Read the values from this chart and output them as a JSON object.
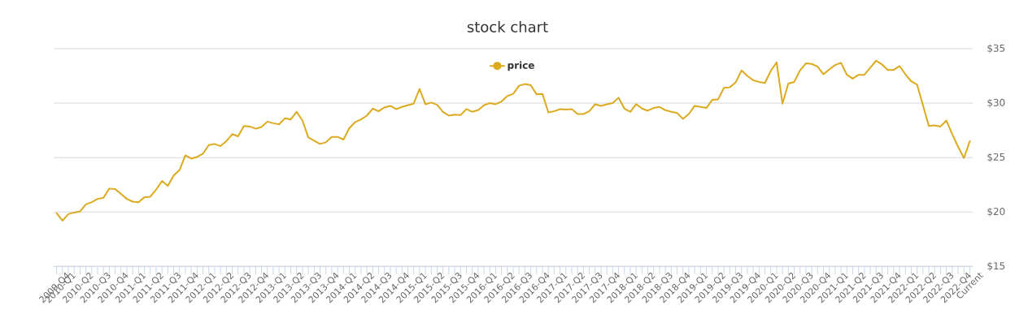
{
  "chart_data": {
    "type": "line",
    "title": "stock chart",
    "categories": [
      "2009-Q4",
      "2010-Q1",
      null,
      null,
      "2010-Q2",
      null,
      null,
      "2010-Q3",
      null,
      null,
      "2010-Q4",
      null,
      null,
      "2011-Q1",
      null,
      null,
      "2011-Q2",
      null,
      null,
      "2011-Q3",
      null,
      null,
      "2011-Q4",
      null,
      null,
      "2012-Q1",
      null,
      null,
      "2012-Q2",
      null,
      null,
      "2012-Q3",
      null,
      null,
      "2012-Q4",
      null,
      null,
      "2013-Q1",
      null,
      null,
      "2013-Q2",
      null,
      null,
      "2013-Q3",
      null,
      null,
      "2013-Q4",
      null,
      null,
      "2014-Q1",
      null,
      null,
      "2014-Q2",
      null,
      null,
      "2014-Q3",
      null,
      null,
      "2014-Q4",
      null,
      null,
      "2015-Q1",
      null,
      null,
      "2015-Q2",
      null,
      null,
      "2015-Q3",
      null,
      null,
      "2015-Q4",
      null,
      null,
      "2016-Q1",
      null,
      null,
      "2016-Q2",
      null,
      null,
      "2016-Q3",
      null,
      null,
      "2016-Q4",
      null,
      null,
      "2017-Q1",
      null,
      null,
      "2017-Q2",
      null,
      null,
      "2017-Q3",
      null,
      null,
      "2017-Q4",
      null,
      null,
      "2018-Q1",
      null,
      null,
      "2018-Q2",
      null,
      null,
      "2018-Q3",
      null,
      null,
      "2018-Q4",
      null,
      null,
      "2019-Q1",
      null,
      null,
      "2019-Q2",
      null,
      null,
      "2019-Q3",
      null,
      null,
      "2019-Q4",
      null,
      null,
      "2020-Q1",
      null,
      null,
      "2020-Q2",
      null,
      null,
      "2020-Q3",
      null,
      null,
      "2020-Q4",
      null,
      null,
      "2021-Q1",
      null,
      null,
      "2021-Q2",
      null,
      null,
      "2021-Q3",
      null,
      null,
      "2021-Q4",
      null,
      null,
      "2022-Q1",
      null,
      null,
      "2022-Q2",
      null,
      null,
      "2022-Q3",
      null,
      null,
      "2022-Q4",
      null,
      "Current"
    ],
    "series": [
      {
        "name": "price",
        "color": "#dcaa1e",
        "values": [
          19.9,
          19.2,
          19.8,
          19.95,
          20.05,
          20.7,
          20.9,
          21.2,
          21.3,
          22.15,
          22.1,
          21.65,
          21.2,
          20.95,
          20.9,
          21.35,
          21.4,
          22.05,
          22.85,
          22.4,
          23.35,
          23.85,
          25.2,
          24.9,
          25.05,
          25.35,
          26.15,
          26.25,
          26.05,
          26.5,
          27.15,
          26.95,
          27.9,
          27.85,
          27.65,
          27.8,
          28.3,
          28.15,
          28.05,
          28.6,
          28.5,
          29.2,
          28.4,
          26.85,
          26.55,
          26.25,
          26.4,
          26.9,
          26.9,
          26.65,
          27.7,
          28.25,
          28.5,
          28.85,
          29.5,
          29.25,
          29.6,
          29.75,
          29.45,
          29.65,
          29.8,
          29.95,
          31.3,
          29.9,
          30.05,
          29.85,
          29.2,
          28.85,
          28.95,
          28.9,
          29.45,
          29.2,
          29.35,
          29.8,
          30.0,
          29.9,
          30.15,
          30.65,
          30.85,
          31.6,
          31.75,
          31.65,
          30.8,
          30.85,
          29.15,
          29.25,
          29.45,
          29.4,
          29.45,
          29.0,
          29.0,
          29.25,
          29.9,
          29.75,
          29.9,
          30.0,
          30.5,
          29.5,
          29.2,
          29.9,
          29.5,
          29.3,
          29.55,
          29.65,
          29.35,
          29.2,
          29.1,
          28.55,
          29.0,
          29.75,
          29.65,
          29.55,
          30.3,
          30.35,
          31.4,
          31.45,
          31.9,
          33.0,
          32.5,
          32.1,
          31.95,
          31.85,
          32.95,
          33.75,
          29.95,
          31.8,
          31.95,
          33.0,
          33.65,
          33.6,
          33.35,
          32.65,
          33.1,
          33.5,
          33.7,
          32.6,
          32.25,
          32.6,
          32.6,
          33.25,
          33.9,
          33.55,
          33.05,
          33.05,
          33.4,
          32.65,
          32.0,
          31.7,
          29.8,
          27.9,
          27.95,
          27.85,
          28.4,
          27.15,
          26.0,
          24.95,
          26.5
        ]
      }
    ],
    "ylim": [
      15,
      35
    ],
    "yticks": [
      {
        "value": 15,
        "label": "$15"
      },
      {
        "value": 20,
        "label": "$20"
      },
      {
        "value": 25,
        "label": "$25"
      },
      {
        "value": 30,
        "label": "$30"
      },
      {
        "value": 35,
        "label": "$35"
      }
    ],
    "grid": "y",
    "legend": "top"
  }
}
